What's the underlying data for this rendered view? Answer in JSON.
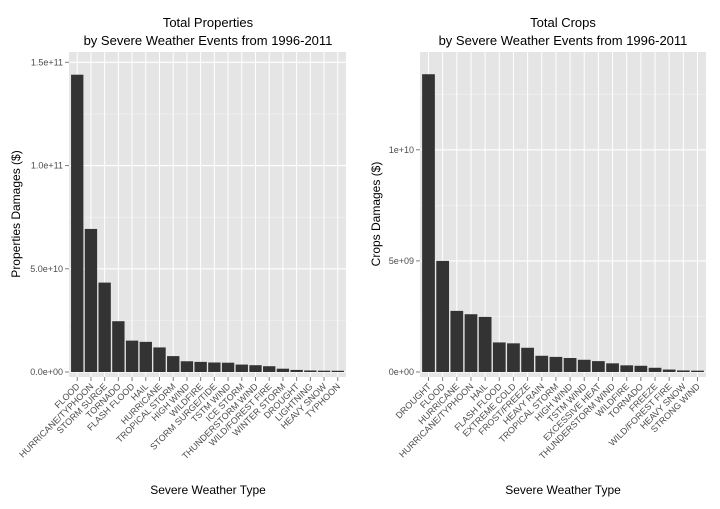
{
  "chart_data": [
    {
      "type": "bar",
      "title": "Total Properties",
      "subtitle": "by Severe Weather Events from 1996-2011",
      "xlabel": "Severe Weather Type",
      "ylabel": "Properties Damages ($)",
      "ylim": [
        0,
        155000000000.0
      ],
      "yticks": [
        0,
        50000000000.0,
        100000000000.0,
        150000000000.0
      ],
      "ytick_labels": [
        "0.0e+00",
        "5.0e+10",
        "1.0e+11",
        "1.5e+11"
      ],
      "grid": true,
      "categories": [
        "FLOOD",
        "HURRICANE/TYPHOON",
        "STORM SURGE",
        "TORNADO",
        "FLASH FLOOD",
        "HAIL",
        "HURRICANE",
        "TROPICAL STORM",
        "HIGH WIND",
        "WILDFIRE",
        "STORM SURGE/TIDE",
        "TSTM WIND",
        "ICE STORM",
        "THUNDERSTORM WIND",
        "WILD/FOREST FIRE",
        "WINTER STORM",
        "DROUGHT",
        "LIGHTNING",
        "HEAVY SNOW",
        "TYPHOON"
      ],
      "values": [
        144000000000.0,
        69300000000.0,
        43300000000.0,
        24600000000.0,
        15200000000.0,
        14600000000.0,
        11900000000.0,
        7700000000.0,
        5200000000.0,
        4900000000.0,
        4600000000.0,
        4500000000.0,
        3600000000.0,
        3300000000.0,
        2800000000.0,
        1600000000.0,
        1000000000.0,
        740000000.0,
        630000000.0,
        600000000.0
      ]
    },
    {
      "type": "bar",
      "title": "Total Crops",
      "subtitle": "by Severe Weather Events from 1996-2011",
      "xlabel": "Severe Weather Type",
      "ylabel": "Crops Damages ($)",
      "ylim": [
        0,
        14400000000.0
      ],
      "yticks": [
        0,
        5000000000.0,
        10000000000.0
      ],
      "ytick_labels": [
        "0e+00",
        "5e+09",
        "1e+10"
      ],
      "grid": true,
      "categories": [
        "DROUGHT",
        "FLOOD",
        "HURRICANE",
        "HURRICANE/TYPHOON",
        "HAIL",
        "FLASH FLOOD",
        "EXTREME COLD",
        "FROST/FREEZE",
        "HEAVY RAIN",
        "TROPICAL STORM",
        "HIGH WIND",
        "TSTM WIND",
        "EXCESSIVE HEAT",
        "THUNDERSTORM WIND",
        "WILDFIRE",
        "TORNADO",
        "FREEZE",
        "WILD/FOREST FIRE",
        "HEAVY SNOW",
        "STRONG WIND"
      ],
      "values": [
        13400000000.0,
        5000000000.0,
        2750000000.0,
        2600000000.0,
        2480000000.0,
        1330000000.0,
        1290000000.0,
        1090000000.0,
        730000000.0,
        680000000.0,
        630000000.0,
        550000000.0,
        490000000.0,
        390000000.0,
        300000000.0,
        280000000.0,
        190000000.0,
        110000000.0,
        70000000.0,
        60000000.0
      ]
    }
  ]
}
